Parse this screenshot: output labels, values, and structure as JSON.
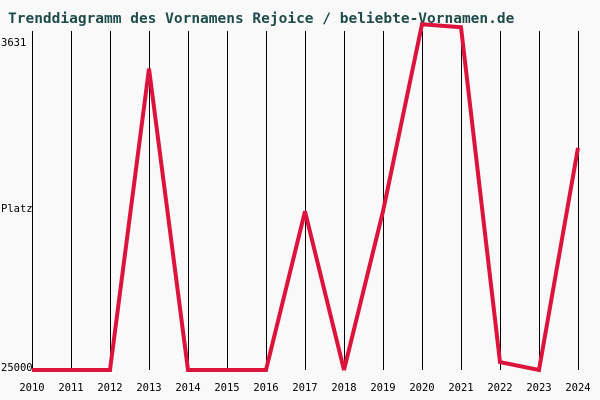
{
  "chart_data": {
    "type": "line",
    "title": "Trenddiagramm des Vornamens Rejoice / beliebte-Vornamen.de",
    "ylabel": "Platz",
    "y_tick_labels": [
      "3631",
      "25000"
    ],
    "y_scale": "rank-inverted",
    "ylim": [
      25000,
      3631
    ],
    "x": [
      "2010",
      "2011",
      "2012",
      "2013",
      "2014",
      "2015",
      "2016",
      "2017",
      "2018",
      "2019",
      "2020",
      "2021",
      "2022",
      "2023",
      "2024"
    ],
    "series": [
      {
        "values": [
          25000,
          25000,
          25000,
          6000,
          25000,
          25000,
          25000,
          15000,
          25000,
          15000,
          3200,
          3400,
          24500,
          25000,
          11000
        ]
      }
    ],
    "grid": {
      "vertical": true,
      "horizontal": false
    },
    "colors": {
      "line": "#dc143c",
      "grid": "#000000",
      "title": "#1f4b4b",
      "background": "#f9f9f9"
    }
  }
}
